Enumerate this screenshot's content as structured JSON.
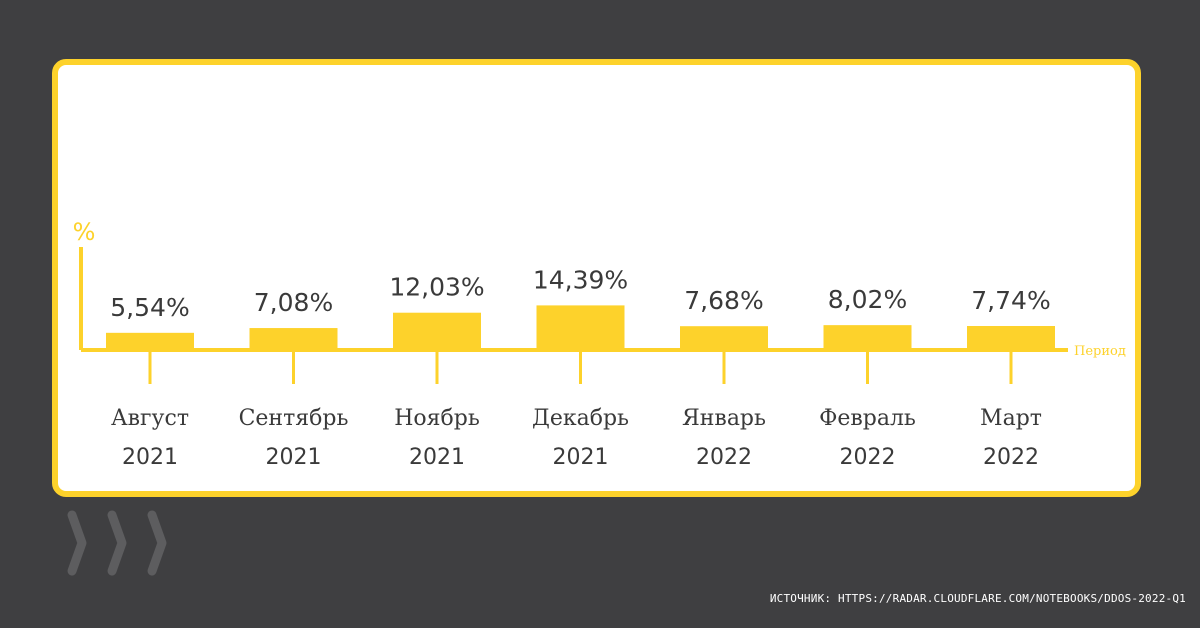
{
  "chart_data": {
    "type": "bar",
    "categories": [
      [
        "Август",
        "2021"
      ],
      [
        "Сентябрь",
        "2021"
      ],
      [
        "Ноябрь",
        "2021"
      ],
      [
        "Декабрь",
        "2021"
      ],
      [
        "Январь",
        "2022"
      ],
      [
        "Февраль",
        "2022"
      ],
      [
        "Март",
        "2022"
      ]
    ],
    "values": [
      5.54,
      7.08,
      12.03,
      14.39,
      7.68,
      8.02,
      7.74
    ],
    "value_labels": [
      "5,54%",
      "7,08%",
      "12,03%",
      "14,39%",
      "7,68%",
      "8,02%",
      "7,74%"
    ],
    "ylabel": "%",
    "xlabel": "Период",
    "ylim": [
      0,
      100
    ],
    "grid": false,
    "colors": {
      "bar": "#fdd22b",
      "axis": "#fdd22b",
      "text": "#3a3a3a",
      "frame": "#fdd22b",
      "background": "#3f3f41"
    }
  },
  "footer": {
    "source": "ИСТОЧНИК: HTTPS://RADAR.CLOUDFLARE.COM/NOTEBOOKS/DDOS-2022-Q1"
  },
  "decor": {
    "icon": "chevron-stripes-icon"
  }
}
